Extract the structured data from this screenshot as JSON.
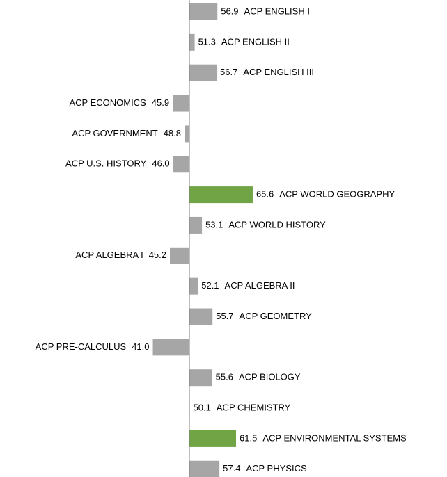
{
  "chart_data": {
    "type": "diverging-bar",
    "categories": [
      "ACP ENGLISH I",
      "ACP ENGLISH II",
      "ACP ENGLISH III",
      "ACP ECONOMICS",
      "ACP GOVERNMENT",
      "ACP U.S. HISTORY",
      "ACP WORLD GEOGRAPHY",
      "ACP WORLD HISTORY",
      "ACP ALGEBRA I",
      "ACP ALGEBRA II",
      "ACP GEOMETRY",
      "ACP PRE-CALCULUS",
      "ACP BIOLOGY",
      "ACP CHEMISTRY",
      "ACP ENVIRONMENTAL SYSTEMS",
      "ACP PHYSICS"
    ],
    "values": [
      56.9,
      51.3,
      56.7,
      45.9,
      48.8,
      46.0,
      65.6,
      53.1,
      45.2,
      52.1,
      55.7,
      41.0,
      55.6,
      50.1,
      61.5,
      57.4
    ],
    "value_labels": [
      "56.9",
      "51.3",
      "56.7",
      "45.9",
      "48.8",
      "46.0",
      "65.6",
      "53.1",
      "45.2",
      "52.1",
      "55.7",
      "41.0",
      "55.6",
      "50.1",
      "61.5",
      "57.4"
    ],
    "colors": [
      "#a6a6a6",
      "#a6a6a6",
      "#a6a6a6",
      "#a6a6a6",
      "#a6a6a6",
      "#a6a6a6",
      "#70a444",
      "#a6a6a6",
      "#a6a6a6",
      "#a6a6a6",
      "#a6a6a6",
      "#a6a6a6",
      "#a6a6a6",
      "#a6a6a6",
      "#70a444",
      "#a6a6a6"
    ],
    "baseline": 50,
    "xlim": [
      40,
      70
    ]
  }
}
